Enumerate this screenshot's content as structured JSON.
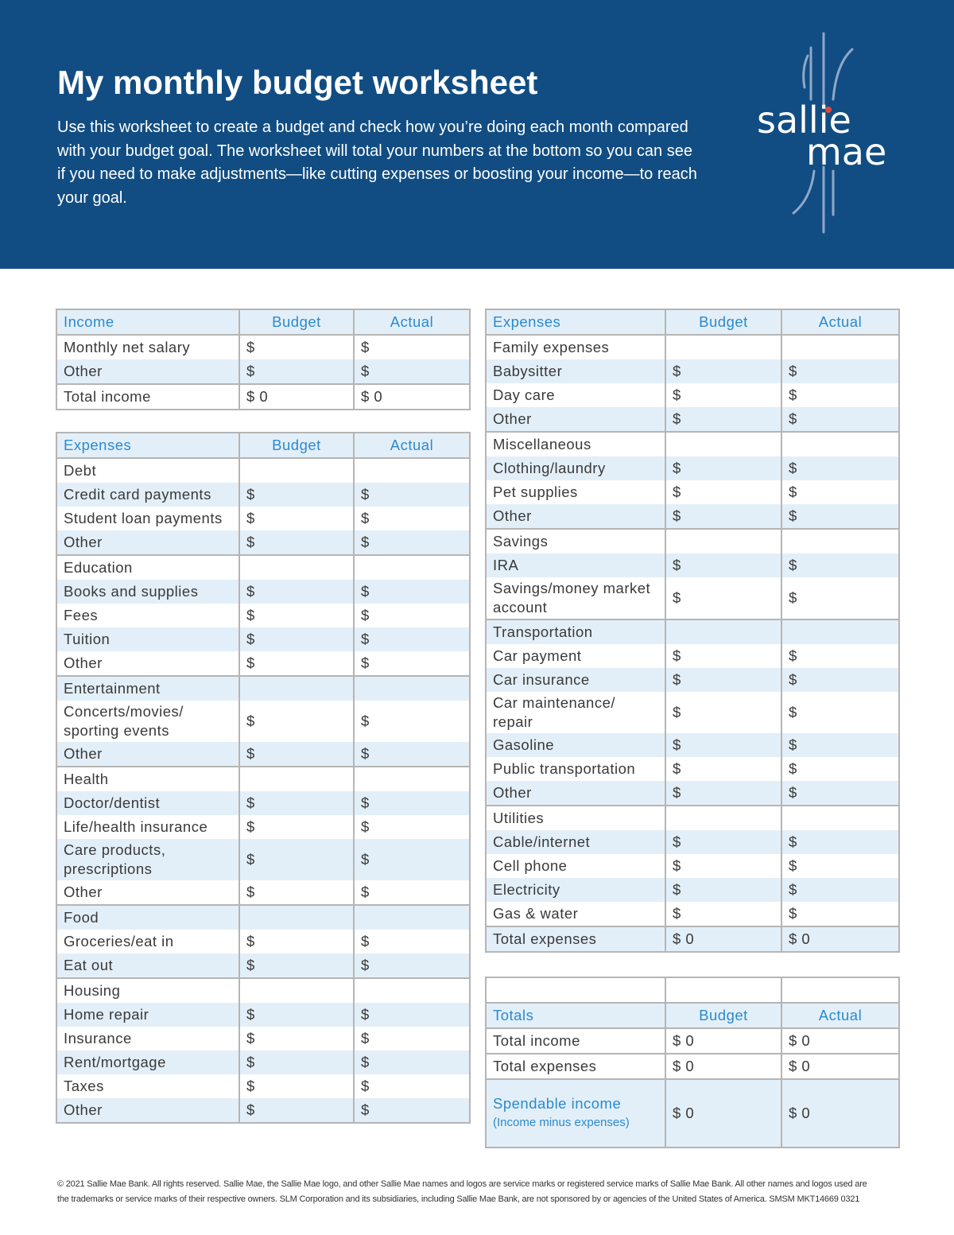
{
  "header": {
    "title": "My monthly budget worksheet",
    "description": "Use this worksheet to create a budget and check how you’re doing each month compared with your budget goal. The worksheet will total your numbers at the bottom so you can see if you need to make adjustments—like cutting expenses or boosting your income—to reach your goal.",
    "logo": [
      "sallie",
      "mae"
    ]
  },
  "income_table": {
    "columns": [
      "Income",
      "Budget",
      "Actual"
    ],
    "groups": [
      {
        "rows": [
          [
            "Monthly net salary",
            "$",
            "$"
          ],
          [
            "Other",
            "$",
            "$"
          ]
        ]
      },
      {
        "rows": [
          [
            "Total income",
            "$ 0",
            "$ 0"
          ]
        ]
      }
    ]
  },
  "left_expenses": {
    "columns": [
      "Expenses",
      "Budget",
      "Actual"
    ],
    "groups": [
      {
        "title": "Debt",
        "rows": [
          [
            "Credit card payments",
            "$",
            "$"
          ],
          [
            "Student loan payments",
            "$",
            "$"
          ],
          [
            "Other",
            "$",
            "$"
          ]
        ]
      },
      {
        "title": "Education",
        "rows": [
          [
            "Books and supplies",
            "$",
            "$"
          ],
          [
            "Fees",
            "$",
            "$"
          ],
          [
            "Tuition",
            "$",
            "$"
          ],
          [
            "Other",
            "$",
            "$"
          ]
        ]
      },
      {
        "title": "Entertainment",
        "rows": [
          [
            "Concerts/movies/ sporting events",
            "$",
            "$"
          ],
          [
            "Other",
            "$",
            "$"
          ]
        ]
      },
      {
        "title": "Health",
        "rows": [
          [
            "Doctor/dentist",
            "$",
            "$"
          ],
          [
            "Life/health insurance",
            "$",
            "$"
          ],
          [
            "Care products, prescriptions",
            "$",
            "$"
          ],
          [
            "Other",
            "$",
            "$"
          ]
        ]
      },
      {
        "title": "Food",
        "rows": [
          [
            "Groceries/eat in",
            "$",
            "$"
          ],
          [
            "Eat out",
            "$",
            "$"
          ]
        ]
      },
      {
        "title": "Housing",
        "rows": [
          [
            "Home repair",
            "$",
            "$"
          ],
          [
            "Insurance",
            "$",
            "$"
          ],
          [
            "Rent/mortgage",
            "$",
            "$"
          ],
          [
            "Taxes",
            "$",
            "$"
          ],
          [
            "Other",
            "$",
            "$"
          ]
        ]
      }
    ]
  },
  "right_expenses": {
    "columns": [
      "Expenses",
      "Budget",
      "Actual"
    ],
    "groups": [
      {
        "title": "Family expenses",
        "rows": [
          [
            "Babysitter",
            "$",
            "$"
          ],
          [
            "Day care",
            "$",
            "$"
          ],
          [
            "Other",
            "$",
            "$"
          ]
        ]
      },
      {
        "title": "Miscellaneous",
        "rows": [
          [
            "Clothing/laundry",
            "$",
            "$"
          ],
          [
            "Pet supplies",
            "$",
            "$"
          ],
          [
            "Other",
            "$",
            "$"
          ]
        ]
      },
      {
        "title": "Savings",
        "rows": [
          [
            "IRA",
            "$",
            "$"
          ],
          [
            "Savings/money market account",
            "$",
            "$"
          ]
        ]
      },
      {
        "title": "Transportation",
        "rows": [
          [
            "Car payment",
            "$",
            "$"
          ],
          [
            "Car insurance",
            "$",
            "$"
          ],
          [
            "Car maintenance/ repair",
            "$",
            "$"
          ],
          [
            "Gasoline",
            "$",
            "$"
          ],
          [
            "Public transportation",
            "$",
            "$"
          ],
          [
            "Other",
            "$",
            "$"
          ]
        ]
      },
      {
        "title": "Utilities",
        "rows": [
          [
            "Cable/internet",
            "$",
            "$"
          ],
          [
            "Cell phone",
            "$",
            "$"
          ],
          [
            "Electricity",
            "$",
            "$"
          ],
          [
            "Gas & water",
            "$",
            "$"
          ]
        ]
      },
      {
        "rows": [
          [
            "Total expenses",
            "$ 0",
            "$ 0"
          ]
        ]
      }
    ]
  },
  "totals_table": {
    "columns": [
      "Totals",
      "Budget",
      "Actual"
    ],
    "groups": [
      {
        "rows": [
          [
            "Total income",
            "$ 0",
            "$ 0"
          ],
          [
            "Total expenses",
            "$ 0",
            "$ 0"
          ],
          [
            "Spendable income",
            "$ 0",
            "$ 0"
          ]
        ]
      }
    ],
    "spendable_note": "(Income minus expenses)"
  },
  "footer": "© 2021 Sallie Mae Bank. All rights reserved. Sallie Mae, the Sallie Mae logo, and other Sallie Mae names and logos are service marks or registered service marks of Sallie Mae Bank. All other names and logos used are the trademarks or service marks of their respective owners. SLM Corporation and its subsidiaries, including Sallie Mae Bank, are not sponsored by or agencies of the United States of America. SMSM MKT14669 0321"
}
